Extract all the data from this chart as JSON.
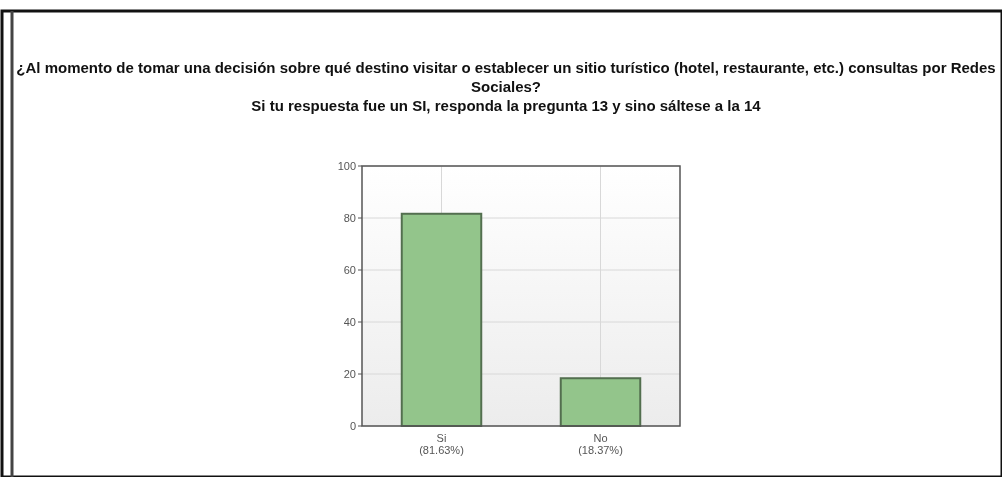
{
  "chart_data": {
    "type": "bar",
    "title": "¿Al momento de tomar una decisión sobre qué destino visitar o establecer un sitio turístico (hotel, restaurante, etc.) consultas por Redes Sociales?",
    "subtitle": "Si tu respuesta fue un SI, responda la pregunta 13 y sino sáltese a la 14",
    "categories": [
      "Si\n(81.63%)",
      "No\n(18.37%)"
    ],
    "values": [
      81.63,
      18.37
    ],
    "color": "#93c58b",
    "ylim": [
      0,
      100
    ],
    "yticks": [
      0,
      20,
      40,
      60,
      80,
      100
    ],
    "grid": true
  }
}
